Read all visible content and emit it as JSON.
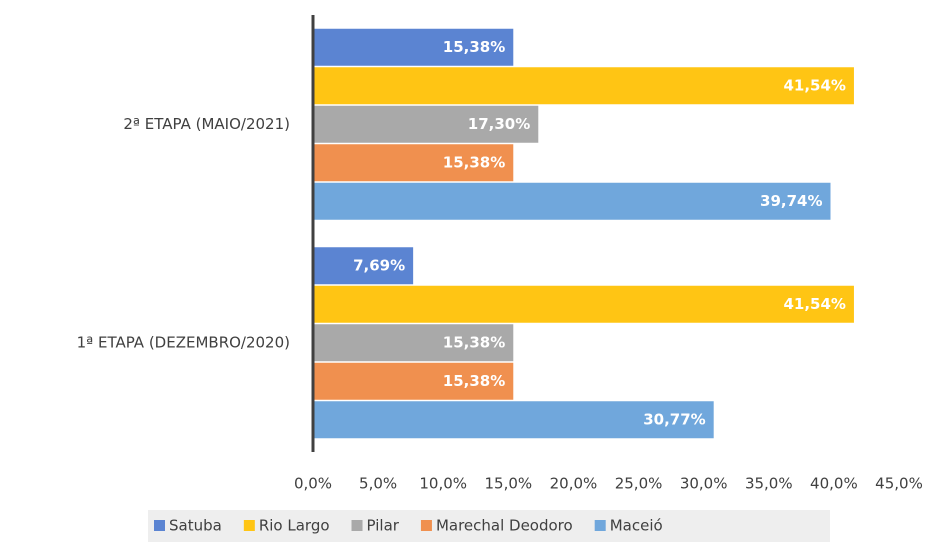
{
  "chart_data": {
    "type": "hbar",
    "categories": [
      "2ª ETAPA (MAIO/2021)",
      "1ª ETAPA (DEZEMBRO/2020)"
    ],
    "series": [
      {
        "name": "Satuba",
        "color": "#5b84d2",
        "values": [
          15.38,
          7.69
        ],
        "value_labels": [
          "15,38%",
          "7,69%"
        ]
      },
      {
        "name": "Rio Largo",
        "color": "#ffc514",
        "values": [
          41.54,
          41.54
        ],
        "value_labels": [
          "41,54%",
          "41,54%"
        ]
      },
      {
        "name": "Pilar",
        "color": "#a9a9a9",
        "values": [
          17.3,
          15.38
        ],
        "value_labels": [
          "17,30%",
          "15,38%"
        ]
      },
      {
        "name": "Marechal Deodoro",
        "color": "#f0904f",
        "values": [
          15.38,
          15.38
        ],
        "value_labels": [
          "15,38%",
          "15,38%"
        ]
      },
      {
        "name": "Maceió",
        "color": "#70a7dc",
        "values": [
          39.74,
          30.77
        ],
        "value_labels": [
          "39,74%",
          "30,77%"
        ]
      }
    ],
    "xlim": [
      0,
      45
    ],
    "xticks": [
      {
        "value": 0,
        "label": "0,0%"
      },
      {
        "value": 5,
        "label": "5,0%"
      },
      {
        "value": 10,
        "label": "10,0%"
      },
      {
        "value": 15,
        "label": "15,0%"
      },
      {
        "value": 20,
        "label": "20,0%"
      },
      {
        "value": 25,
        "label": "25,0%"
      },
      {
        "value": 30,
        "label": "30,0%"
      },
      {
        "value": 35,
        "label": "35,0%"
      },
      {
        "value": 40,
        "label": "40,0%"
      },
      {
        "value": 45,
        "label": "45,0%"
      }
    ],
    "legend": "bottom"
  }
}
